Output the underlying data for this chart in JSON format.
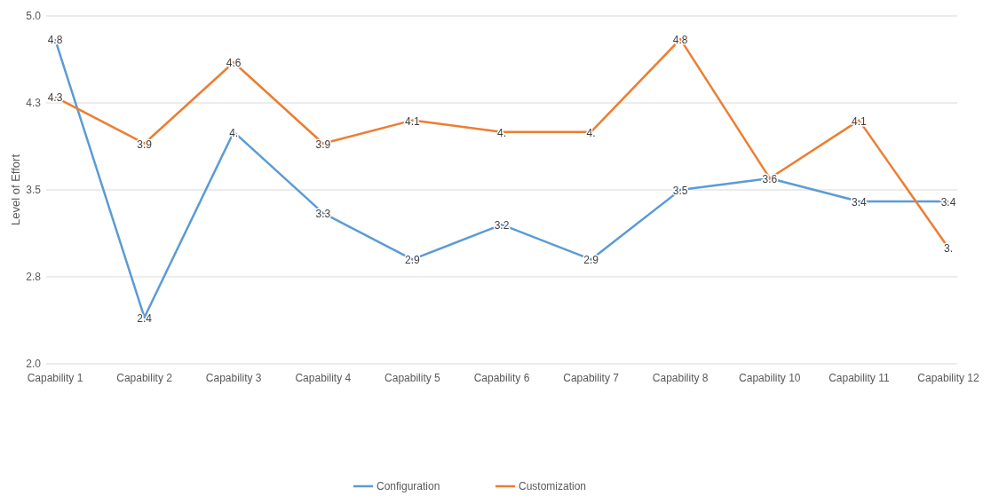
{
  "chart_data": {
    "type": "line",
    "ylabel": "Level of Effort",
    "categories": [
      "Capability 1",
      "Capability 2",
      "Capability 3",
      "Capability 4",
      "Capability 5",
      "Capability 6",
      "Capability 7",
      "Capability 8",
      "Capability 10",
      "Capability 11",
      "Capability 12"
    ],
    "series": [
      {
        "name": "Configuration",
        "color": "#5b9bd5",
        "values": [
          4.8,
          2.4,
          4.0,
          3.3,
          2.9,
          3.2,
          2.9,
          3.5,
          3.6,
          3.4,
          3.4
        ],
        "value_labels": [
          "4.8",
          "2.4",
          "4.",
          "3.3",
          "2.9",
          "3.2",
          "2.9",
          "3.5",
          null,
          "3.4",
          "3.4"
        ]
      },
      {
        "name": "Customization",
        "color": "#ed7d31",
        "values": [
          4.3,
          3.9,
          4.6,
          3.9,
          4.1,
          4.0,
          4.0,
          4.8,
          3.6,
          4.1,
          3.0
        ],
        "value_labels": [
          "4.3",
          "3.9",
          "4.6",
          "3.9",
          "4.1",
          "4.",
          "4.",
          "4.8",
          "3.6",
          "4.1",
          "3."
        ]
      }
    ],
    "ylim": [
      2,
      5
    ],
    "yticks": [
      {
        "value": 2,
        "label": "2.0"
      },
      {
        "value": 2.75,
        "label": "2.8"
      },
      {
        "value": 3.5,
        "label": "3.5"
      },
      {
        "value": 4.25,
        "label": "4.3"
      },
      {
        "value": 5,
        "label": "5.0"
      }
    ],
    "grid": "y",
    "legend": "bottom",
    "marker": "none",
    "line_style": "solid"
  }
}
